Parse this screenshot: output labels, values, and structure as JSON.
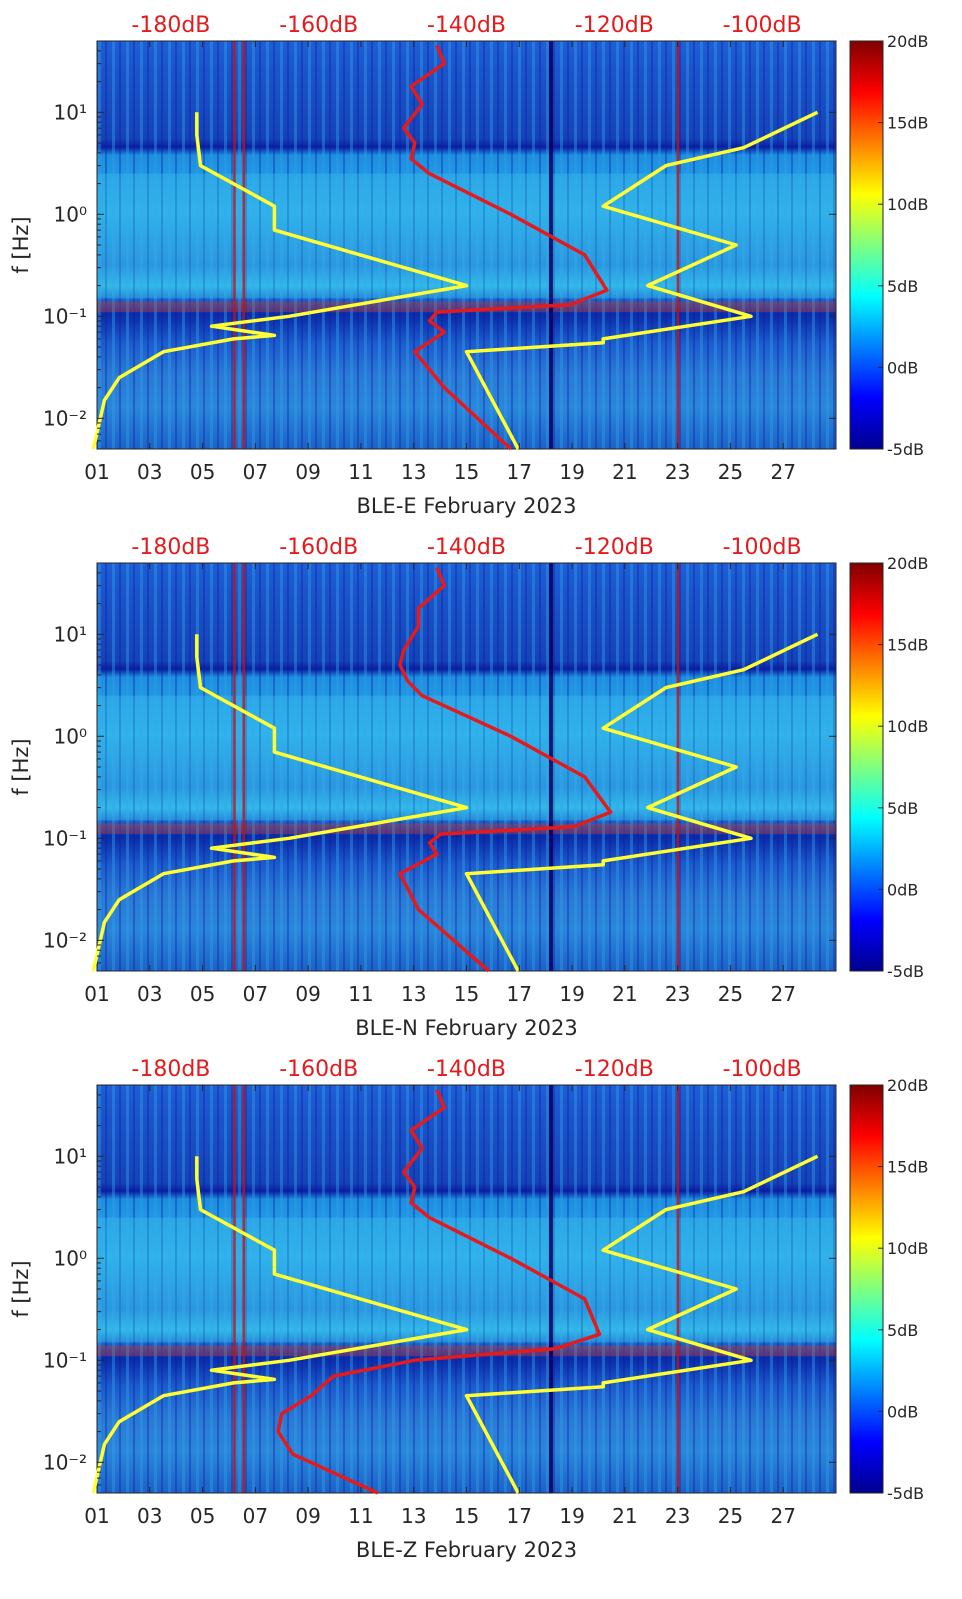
{
  "figure": {
    "colors": {
      "yellow_curve": "#ffff33",
      "red_curve": "#e41a1c",
      "top_label": "#e41a1c"
    }
  },
  "chart_data": [
    {
      "type": "heatmap",
      "title": "",
      "xlabel": "BLE-E February 2023",
      "ylabel": "f [Hz]",
      "xlim": [
        1,
        29
      ],
      "ylim": [
        0.005,
        50
      ],
      "yscale": "log",
      "xticks": [
        "01",
        "03",
        "05",
        "07",
        "09",
        "11",
        "13",
        "15",
        "17",
        "19",
        "21",
        "23",
        "25",
        "27"
      ],
      "yticks": [
        "10^-2",
        "10^-1",
        "10^0",
        "10^1"
      ],
      "top_axis_labels": [
        "-180dB",
        "-160dB",
        "-140dB",
        "-120dB",
        "-100dB"
      ],
      "top_axis_range_dB": [
        -190,
        -90
      ],
      "colorbar": {
        "range_dB": [
          -5,
          20
        ],
        "ticks": [
          "-5dB",
          "0dB",
          "5dB",
          "10dB",
          "15dB",
          "20dB"
        ]
      },
      "series": [
        {
          "name": "yellow model curve (low)",
          "color": "#ffff33",
          "x_dB": [
            -190.5,
            -189.0,
            -187.0,
            -181.0,
            -171.5,
            -166.0,
            -174.5,
            -164.0,
            -140.0,
            -166.0,
            -166.0,
            -176.0,
            -176.5,
            -176.5
          ],
          "f_hz": [
            0.005,
            0.015,
            0.025,
            0.045,
            0.06,
            0.065,
            0.08,
            0.1,
            0.2,
            0.7,
            1.2,
            3.0,
            6.0,
            10.0
          ]
        },
        {
          "name": "yellow model curve (high)",
          "color": "#ffff33",
          "x_dB": [
            -133.0,
            -140.0,
            -121.5,
            -121.5,
            -101.5,
            -115.5,
            -103.5,
            -121.5,
            -113.0,
            -102.5,
            -92.5
          ],
          "f_hz": [
            0.005,
            0.045,
            0.055,
            0.06,
            0.1,
            0.2,
            0.5,
            1.2,
            3.0,
            4.5,
            10.0
          ]
        },
        {
          "name": "red noise curve",
          "color": "#e41a1c",
          "x_dB": [
            -134.0,
            -143.0,
            -147.0,
            -143.0,
            -145.0,
            -144.0,
            -126.0,
            -121.0,
            -124.0,
            -134.0,
            -145.0,
            -147.5,
            -147.0,
            -148.5,
            -146.0,
            -147.5,
            -143.0,
            -144.0
          ],
          "f_hz": [
            0.005,
            0.02,
            0.045,
            0.07,
            0.09,
            0.11,
            0.13,
            0.18,
            0.4,
            1.0,
            2.5,
            3.5,
            5.0,
            7.0,
            12.0,
            18.0,
            30.0,
            45.0
          ]
        }
      ]
    },
    {
      "type": "heatmap",
      "title": "",
      "xlabel": "BLE-N February 2023",
      "ylabel": "f [Hz]",
      "xlim": [
        1,
        29
      ],
      "ylim": [
        0.005,
        50
      ],
      "yscale": "log",
      "xticks": [
        "01",
        "03",
        "05",
        "07",
        "09",
        "11",
        "13",
        "15",
        "17",
        "19",
        "21",
        "23",
        "25",
        "27"
      ],
      "yticks": [
        "10^-2",
        "10^-1",
        "10^0",
        "10^1"
      ],
      "top_axis_labels": [
        "-180dB",
        "-160dB",
        "-140dB",
        "-120dB",
        "-100dB"
      ],
      "top_axis_range_dB": [
        -190,
        -90
      ],
      "colorbar": {
        "range_dB": [
          -5,
          20
        ],
        "ticks": [
          "-5dB",
          "0dB",
          "5dB",
          "10dB",
          "15dB",
          "20dB"
        ]
      },
      "series": [
        {
          "name": "yellow model curve (low)",
          "color": "#ffff33",
          "x_dB": [
            -190.5,
            -189.0,
            -187.0,
            -181.0,
            -171.5,
            -166.0,
            -174.5,
            -164.0,
            -140.0,
            -166.0,
            -166.0,
            -176.0,
            -176.5,
            -176.5
          ],
          "f_hz": [
            0.005,
            0.015,
            0.025,
            0.045,
            0.06,
            0.065,
            0.08,
            0.1,
            0.2,
            0.7,
            1.2,
            3.0,
            6.0,
            10.0
          ]
        },
        {
          "name": "yellow model curve (high)",
          "color": "#ffff33",
          "x_dB": [
            -133.0,
            -140.0,
            -121.5,
            -121.5,
            -101.5,
            -115.5,
            -103.5,
            -121.5,
            -113.0,
            -102.5,
            -92.5
          ],
          "f_hz": [
            0.005,
            0.045,
            0.055,
            0.06,
            0.1,
            0.2,
            0.5,
            1.2,
            3.0,
            4.5,
            10.0
          ]
        },
        {
          "name": "red noise curve",
          "color": "#e41a1c",
          "x_dB": [
            -137.0,
            -146.5,
            -149.0,
            -144.0,
            -145.0,
            -143.5,
            -125.5,
            -120.5,
            -124.0,
            -134.0,
            -146.0,
            -148.0,
            -149.0,
            -148.5,
            -146.5,
            -146.5,
            -143.0,
            -144.0
          ],
          "f_hz": [
            0.005,
            0.02,
            0.045,
            0.07,
            0.09,
            0.11,
            0.13,
            0.18,
            0.4,
            1.0,
            2.5,
            3.5,
            5.0,
            7.0,
            12.0,
            18.0,
            30.0,
            45.0
          ]
        }
      ]
    },
    {
      "type": "heatmap",
      "title": "",
      "xlabel": "BLE-Z February 2023",
      "ylabel": "f [Hz]",
      "xlim": [
        1,
        29
      ],
      "ylim": [
        0.005,
        50
      ],
      "yscale": "log",
      "xticks": [
        "01",
        "03",
        "05",
        "07",
        "09",
        "11",
        "13",
        "15",
        "17",
        "19",
        "21",
        "23",
        "25",
        "27"
      ],
      "yticks": [
        "10^-2",
        "10^-1",
        "10^0",
        "10^1"
      ],
      "top_axis_labels": [
        "-180dB",
        "-160dB",
        "-140dB",
        "-120dB",
        "-100dB"
      ],
      "top_axis_range_dB": [
        -190,
        -90
      ],
      "colorbar": {
        "range_dB": [
          -5,
          20
        ],
        "ticks": [
          "-5dB",
          "0dB",
          "5dB",
          "10dB",
          "15dB",
          "20dB"
        ]
      },
      "series": [
        {
          "name": "yellow model curve (low)",
          "color": "#ffff33",
          "x_dB": [
            -190.5,
            -189.0,
            -187.0,
            -181.0,
            -171.5,
            -166.0,
            -174.5,
            -164.0,
            -140.0,
            -166.0,
            -166.0,
            -176.0,
            -176.5,
            -176.5
          ],
          "f_hz": [
            0.005,
            0.015,
            0.025,
            0.045,
            0.06,
            0.065,
            0.08,
            0.1,
            0.2,
            0.7,
            1.2,
            3.0,
            6.0,
            10.0
          ]
        },
        {
          "name": "yellow model curve (high)",
          "color": "#ffff33",
          "x_dB": [
            -133.0,
            -140.0,
            -121.5,
            -121.5,
            -101.5,
            -115.5,
            -103.5,
            -121.5,
            -113.0,
            -102.5,
            -92.5
          ],
          "f_hz": [
            0.005,
            0.045,
            0.055,
            0.06,
            0.1,
            0.2,
            0.5,
            1.2,
            3.0,
            4.5,
            10.0
          ]
        },
        {
          "name": "red noise curve",
          "color": "#e41a1c",
          "x_dB": [
            -152.0,
            -163.5,
            -165.5,
            -165.0,
            -161.0,
            -158.0,
            -147.0,
            -128.0,
            -122.0,
            -124.0,
            -134.0,
            -145.0,
            -147.5,
            -147.0,
            -148.5,
            -146.0,
            -147.5,
            -143.0,
            -144.0
          ],
          "f_hz": [
            0.005,
            0.012,
            0.02,
            0.03,
            0.045,
            0.07,
            0.1,
            0.13,
            0.18,
            0.4,
            1.0,
            2.5,
            3.5,
            5.0,
            7.0,
            12.0,
            18.0,
            30.0,
            45.0
          ]
        }
      ]
    }
  ]
}
